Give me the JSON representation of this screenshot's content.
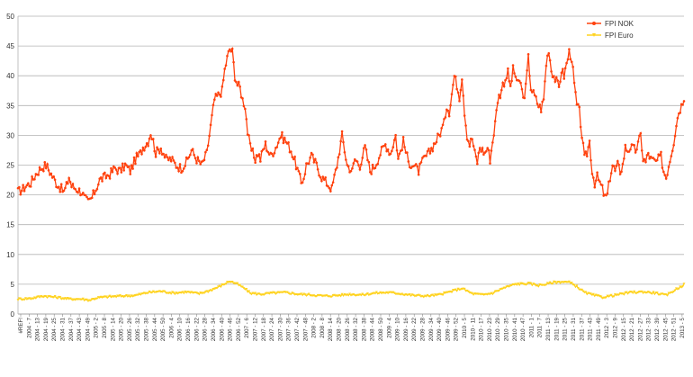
{
  "chart_data": {
    "type": "line",
    "title": "",
    "xlabel": "",
    "ylabel": "",
    "ylim": [
      0,
      50
    ],
    "y_ticks": [
      0,
      5,
      10,
      15,
      20,
      25,
      30,
      35,
      40,
      45,
      50
    ],
    "grid": "horizontal",
    "legend_position": "top-right",
    "x_tick_labels": [
      "#REF!",
      "2004 - 7",
      "2004 - 13",
      "2004 - 19",
      "2004 - 25",
      "2004 - 31",
      "2004 - 37",
      "2004 - 43",
      "2004 - 49",
      "2005 - 2",
      "2005 - 8",
      "2005 - 14",
      "2005 - 20",
      "2005 - 26",
      "2005 - 32",
      "2005 - 38",
      "2005 - 44",
      "2005 - 50",
      "2006 - 4",
      "2006 - 10",
      "2006 - 16",
      "2006 - 22",
      "2006 - 28",
      "2006 - 34",
      "2006 - 40",
      "2006 - 46",
      "2006 - 52",
      "2007 - 6",
      "2007 - 12",
      "2007 - 18",
      "2007 - 24",
      "2007 - 30",
      "2007 - 36",
      "2007 - 42",
      "2007 - 48",
      "2008 - 2",
      "2008 - 8",
      "2008 - 14",
      "2008 - 20",
      "2008 - 26",
      "2008 - 32",
      "2008 - 38",
      "2008 - 44",
      "2008 - 50",
      "2009 - 4",
      "2009 - 10",
      "2009 - 16",
      "2009 - 22",
      "2009 - 28",
      "2009 - 34",
      "2009 - 40",
      "2009 - 46",
      "2009 - 52",
      "2010 - 5",
      "2010 - 11",
      "2010 - 17",
      "2010 - 23",
      "2010 - 29",
      "2010 - 35",
      "2010 - 41",
      "2010 - 47",
      "2011 - 1",
      "2011 - 7",
      "2011 - 13",
      "2011 - 19",
      "2011 - 25",
      "2011 - 31",
      "2011 - 37",
      "2011 - 43",
      "2011 - 49",
      "2012 - 3",
      "2012 - 9",
      "2012 - 15",
      "2012 - 21",
      "2012 - 27",
      "2012 - 33",
      "2012 - 39",
      "2012 - 45",
      "2012 - 51",
      "2013 - 5"
    ],
    "series": [
      {
        "name": "FPI NOK",
        "color": "#ff420e",
        "keypoints": [
          [
            0,
            20.5
          ],
          [
            4,
            21
          ],
          [
            6,
            21.5
          ],
          [
            10,
            22
          ],
          [
            14,
            23.5
          ],
          [
            18,
            24.5
          ],
          [
            22,
            25
          ],
          [
            26,
            23.5
          ],
          [
            30,
            22
          ],
          [
            34,
            21
          ],
          [
            36,
            20.5
          ],
          [
            38,
            21.5
          ],
          [
            40,
            23
          ],
          [
            42,
            21.5
          ],
          [
            46,
            21
          ],
          [
            50,
            20.5
          ],
          [
            52,
            19.5
          ],
          [
            55,
            18.8
          ],
          [
            58,
            19.5
          ],
          [
            61,
            21
          ],
          [
            64,
            22.5
          ],
          [
            68,
            23
          ],
          [
            72,
            23.5
          ],
          [
            76,
            24.5
          ],
          [
            80,
            24
          ],
          [
            84,
            25
          ],
          [
            88,
            24
          ],
          [
            92,
            26
          ],
          [
            96,
            27
          ],
          [
            98,
            28
          ],
          [
            102,
            29
          ],
          [
            104,
            30.5
          ],
          [
            106,
            29
          ],
          [
            108,
            27
          ],
          [
            112,
            28
          ],
          [
            116,
            26
          ],
          [
            120,
            26
          ],
          [
            124,
            25
          ],
          [
            128,
            24.5
          ],
          [
            132,
            25.5
          ],
          [
            136,
            27.5
          ],
          [
            140,
            26
          ],
          [
            144,
            25
          ],
          [
            148,
            27
          ],
          [
            150,
            30
          ],
          [
            152,
            33
          ],
          [
            154,
            36
          ],
          [
            158,
            37
          ],
          [
            160,
            37.5
          ],
          [
            162,
            41
          ],
          [
            164,
            43
          ],
          [
            166,
            44.5
          ],
          [
            168,
            44
          ],
          [
            170,
            40
          ],
          [
            172,
            38.5
          ],
          [
            174,
            38
          ],
          [
            176,
            36
          ],
          [
            178,
            35
          ],
          [
            180,
            30.5
          ],
          [
            182,
            28
          ],
          [
            186,
            26
          ],
          [
            188,
            27
          ],
          [
            190,
            26
          ],
          [
            192,
            27.5
          ],
          [
            194,
            28.5
          ],
          [
            198,
            26.5
          ],
          [
            202,
            28
          ],
          [
            206,
            30
          ],
          [
            208,
            29.5
          ],
          [
            210,
            29
          ],
          [
            214,
            27.5
          ],
          [
            218,
            25
          ],
          [
            222,
            22
          ],
          [
            224,
            23
          ],
          [
            226,
            25
          ],
          [
            230,
            26.5
          ],
          [
            234,
            25
          ],
          [
            238,
            23
          ],
          [
            242,
            22
          ],
          [
            246,
            21
          ],
          [
            250,
            25
          ],
          [
            254,
            30
          ],
          [
            258,
            25
          ],
          [
            262,
            24
          ],
          [
            264,
            26
          ],
          [
            268,
            25
          ],
          [
            272,
            28
          ],
          [
            276,
            24
          ],
          [
            280,
            25
          ],
          [
            284,
            27
          ],
          [
            288,
            28.5
          ],
          [
            292,
            27
          ],
          [
            296,
            30
          ],
          [
            298,
            26
          ],
          [
            302,
            29
          ],
          [
            306,
            25.5
          ],
          [
            310,
            25
          ],
          [
            314,
            24
          ],
          [
            318,
            26
          ],
          [
            322,
            27
          ],
          [
            326,
            28.5
          ],
          [
            330,
            30
          ],
          [
            334,
            32
          ],
          [
            336,
            35
          ],
          [
            338,
            34
          ],
          [
            340,
            37
          ],
          [
            342,
            40
          ],
          [
            344,
            38.5
          ],
          [
            346,
            36.5
          ],
          [
            348,
            40
          ],
          [
            350,
            34
          ],
          [
            352,
            30
          ],
          [
            354,
            28.5
          ],
          [
            356,
            29.5
          ],
          [
            358,
            27
          ],
          [
            360,
            25.5
          ],
          [
            362,
            28
          ],
          [
            366,
            27
          ],
          [
            368,
            28
          ],
          [
            370,
            26
          ],
          [
            372,
            29
          ],
          [
            374,
            32
          ],
          [
            376,
            36
          ],
          [
            378,
            37
          ],
          [
            380,
            38.5
          ],
          [
            382,
            39.5
          ],
          [
            384,
            40.5
          ],
          [
            386,
            38
          ],
          [
            388,
            41
          ],
          [
            390,
            40
          ],
          [
            392,
            38.5
          ],
          [
            394,
            39
          ],
          [
            396,
            36
          ],
          [
            398,
            38
          ],
          [
            400,
            43
          ],
          [
            402,
            38
          ],
          [
            404,
            37
          ],
          [
            406,
            36
          ],
          [
            408,
            35
          ],
          [
            410,
            34.5
          ],
          [
            412,
            36
          ],
          [
            414,
            42
          ],
          [
            416,
            44.5
          ],
          [
            418,
            41
          ],
          [
            420,
            40
          ],
          [
            422,
            39
          ],
          [
            424,
            38
          ],
          [
            426,
            41
          ],
          [
            428,
            40
          ],
          [
            430,
            42
          ],
          [
            432,
            44
          ],
          [
            434,
            43
          ],
          [
            436,
            38.5
          ],
          [
            438,
            35
          ],
          [
            440,
            34
          ],
          [
            442,
            30
          ],
          [
            444,
            26
          ],
          [
            446,
            27
          ],
          [
            448,
            29
          ],
          [
            450,
            24
          ],
          [
            452,
            22
          ],
          [
            454,
            23
          ],
          [
            456,
            22
          ],
          [
            458,
            21
          ],
          [
            460,
            19.5
          ],
          [
            462,
            20
          ],
          [
            464,
            23
          ],
          [
            466,
            25
          ],
          [
            468,
            24
          ],
          [
            470,
            25
          ],
          [
            472,
            24
          ],
          [
            474,
            25
          ],
          [
            476,
            28
          ],
          [
            478,
            27.5
          ],
          [
            480,
            28
          ],
          [
            484,
            27.5
          ],
          [
            486,
            28.5
          ],
          [
            488,
            30
          ],
          [
            490,
            26
          ],
          [
            492,
            25.5
          ],
          [
            494,
            27
          ],
          [
            496,
            26
          ],
          [
            500,
            25.5
          ],
          [
            504,
            26.5
          ],
          [
            506,
            24
          ],
          [
            508,
            23
          ],
          [
            510,
            25
          ],
          [
            512,
            27
          ],
          [
            514,
            29
          ],
          [
            516,
            32
          ],
          [
            518,
            34
          ],
          [
            520,
            35
          ],
          [
            522,
            36.5
          ]
        ]
      },
      {
        "name": "FPI Euro",
        "color": "#ffd320",
        "keypoints": [
          [
            0,
            2.5
          ],
          [
            10,
            2.6
          ],
          [
            20,
            3.0
          ],
          [
            30,
            2.8
          ],
          [
            40,
            2.5
          ],
          [
            50,
            2.5
          ],
          [
            56,
            2.3
          ],
          [
            62,
            2.7
          ],
          [
            72,
            2.9
          ],
          [
            82,
            3.0
          ],
          [
            92,
            3.1
          ],
          [
            102,
            3.6
          ],
          [
            112,
            3.8
          ],
          [
            122,
            3.5
          ],
          [
            132,
            3.7
          ],
          [
            142,
            3.4
          ],
          [
            150,
            3.9
          ],
          [
            158,
            4.6
          ],
          [
            166,
            5.5
          ],
          [
            172,
            5.0
          ],
          [
            178,
            4.2
          ],
          [
            182,
            3.5
          ],
          [
            190,
            3.3
          ],
          [
            200,
            3.5
          ],
          [
            210,
            3.6
          ],
          [
            220,
            3.3
          ],
          [
            230,
            3.2
          ],
          [
            240,
            3.0
          ],
          [
            250,
            3.1
          ],
          [
            260,
            3.3
          ],
          [
            270,
            3.2
          ],
          [
            280,
            3.5
          ],
          [
            290,
            3.6
          ],
          [
            300,
            3.4
          ],
          [
            310,
            3.1
          ],
          [
            320,
            3.0
          ],
          [
            330,
            3.2
          ],
          [
            340,
            3.8
          ],
          [
            348,
            4.3
          ],
          [
            356,
            3.4
          ],
          [
            364,
            3.2
          ],
          [
            372,
            3.5
          ],
          [
            380,
            4.3
          ],
          [
            390,
            5.0
          ],
          [
            400,
            5.1
          ],
          [
            408,
            4.8
          ],
          [
            414,
            5.0
          ],
          [
            420,
            5.3
          ],
          [
            426,
            5.4
          ],
          [
            432,
            5.3
          ],
          [
            438,
            4.6
          ],
          [
            444,
            3.6
          ],
          [
            450,
            3.2
          ],
          [
            458,
            2.8
          ],
          [
            464,
            3.0
          ],
          [
            472,
            3.3
          ],
          [
            480,
            3.6
          ],
          [
            490,
            3.7
          ],
          [
            500,
            3.5
          ],
          [
            508,
            3.1
          ],
          [
            514,
            3.9
          ],
          [
            522,
            4.9
          ]
        ]
      }
    ]
  }
}
